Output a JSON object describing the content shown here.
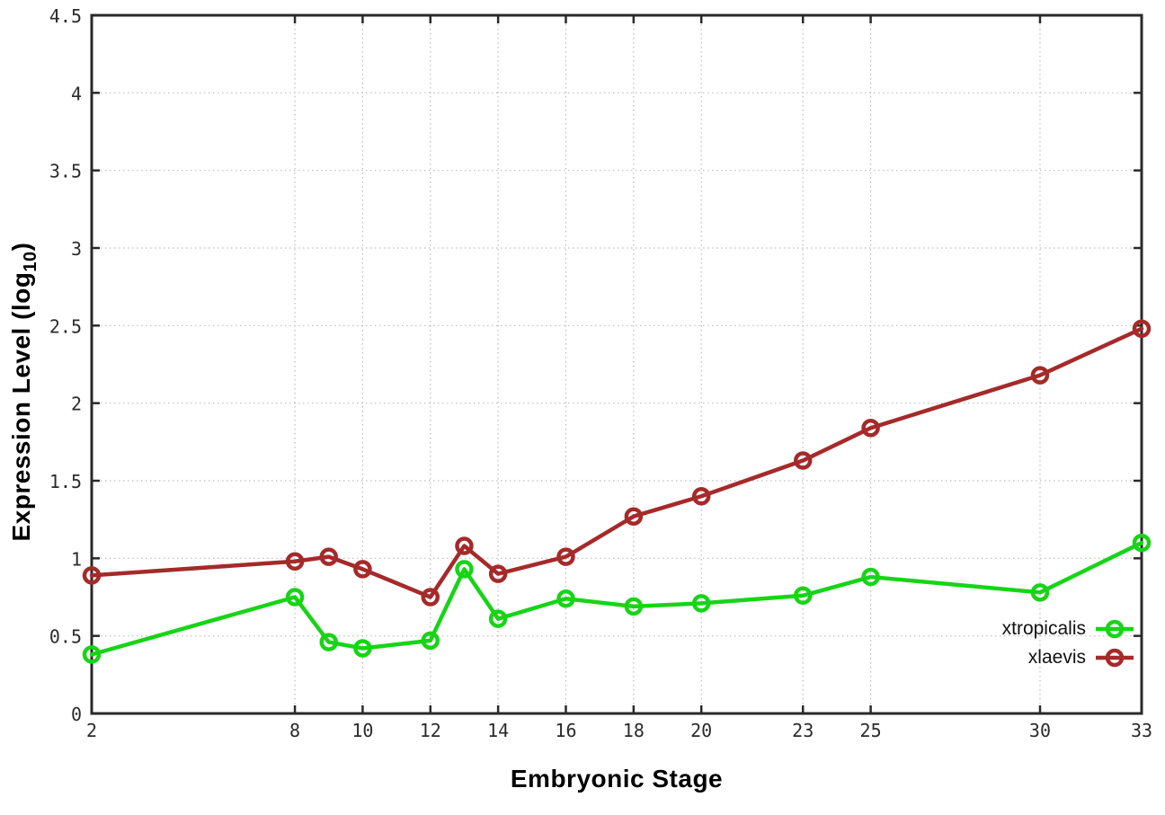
{
  "chart_data": {
    "type": "line",
    "title": "",
    "xlabel": "Embryonic Stage",
    "ylabel": "Expression Level (log10)",
    "ylabel_parts": {
      "prefix": "Expression Level (log",
      "sub": "10",
      "suffix": ")"
    },
    "x": [
      2,
      8,
      9,
      10,
      12,
      13,
      14,
      16,
      18,
      20,
      23,
      25,
      30,
      33
    ],
    "series": [
      {
        "name": "xtropicalis",
        "color": "#17d417",
        "values": [
          0.38,
          0.75,
          0.46,
          0.42,
          0.47,
          0.93,
          0.61,
          0.74,
          0.69,
          0.71,
          0.76,
          0.88,
          0.78,
          1.1
        ]
      },
      {
        "name": "xlaevis",
        "color": "#a52a2a",
        "values": [
          0.89,
          0.98,
          1.01,
          0.93,
          0.75,
          1.08,
          0.9,
          1.01,
          1.27,
          1.4,
          1.63,
          1.84,
          2.18,
          2.48
        ]
      }
    ],
    "xlim": [
      2,
      33
    ],
    "ylim": [
      0,
      4.5
    ],
    "xticks": {
      "values": [
        2,
        8,
        10,
        12,
        14,
        16,
        18,
        20,
        23,
        25,
        30,
        33
      ],
      "labels": [
        "2",
        "8",
        "10",
        "12",
        "14",
        "16",
        "18",
        "20",
        "23",
        "25",
        "30",
        "33"
      ]
    },
    "yticks": {
      "values": [
        0,
        0.5,
        1,
        1.5,
        2,
        2.5,
        3,
        3.5,
        4,
        4.5
      ],
      "labels": [
        "0",
        "0.5",
        "1",
        "1.5",
        "2",
        "2.5",
        "3",
        "3.5",
        "4",
        "4.5"
      ]
    },
    "grid": true,
    "legend_position": "inside-bottom-right",
    "colors": {
      "background": "#ffffff",
      "axis": "#2a2a2a",
      "grid": "#bcbcbc",
      "tick_text": "#2b2b2b",
      "title_text": "#000000"
    }
  }
}
